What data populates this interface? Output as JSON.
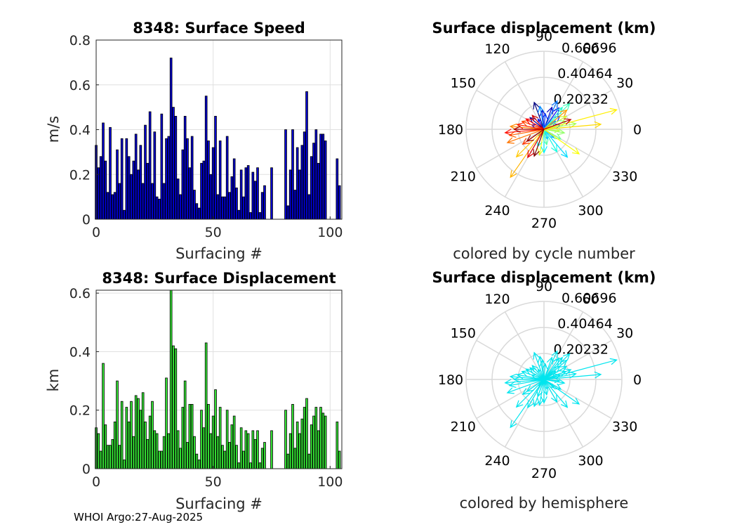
{
  "footer": "WHOI Argo:27-Aug-2025",
  "colors": {
    "speed_bar": "#0000cc",
    "disp_bar": "#33dd33",
    "hemisphere": "#00e5ee"
  },
  "chart_data": [
    {
      "id": "speed",
      "type": "bar",
      "title": "8348: Surface Speed",
      "xlabel": "Surfacing #",
      "ylabel": "m/s",
      "xlim": [
        0,
        105
      ],
      "ylim": [
        0,
        0.8
      ],
      "xticks": [
        "0",
        "50",
        "100"
      ],
      "xtick_values": [
        0,
        50,
        100
      ],
      "yticks": [
        "0",
        "0.2",
        "0.4",
        "0.6",
        "0.8"
      ],
      "ytick_values": [
        0,
        0.2,
        0.4,
        0.6,
        0.8
      ],
      "x": [
        0,
        1,
        2,
        3,
        4,
        5,
        6,
        7,
        8,
        9,
        10,
        11,
        12,
        13,
        14,
        15,
        16,
        17,
        18,
        19,
        20,
        21,
        22,
        23,
        24,
        25,
        26,
        27,
        28,
        29,
        30,
        31,
        32,
        33,
        34,
        35,
        36,
        37,
        38,
        39,
        40,
        41,
        42,
        43,
        44,
        45,
        46,
        47,
        48,
        49,
        50,
        51,
        52,
        53,
        54,
        55,
        56,
        57,
        58,
        59,
        60,
        61,
        62,
        63,
        64,
        65,
        66,
        67,
        68,
        69,
        70,
        71,
        72,
        75,
        81,
        82,
        83,
        84,
        85,
        86,
        87,
        88,
        89,
        90,
        91,
        92,
        93,
        94,
        95,
        96,
        97,
        98,
        103,
        104
      ],
      "values": [
        0.33,
        0.23,
        0.28,
        0.43,
        0.26,
        0.12,
        0.41,
        0.11,
        0.12,
        0.31,
        0.16,
        0.36,
        0.04,
        0.36,
        0.28,
        0.2,
        0.26,
        0.38,
        0.22,
        0.33,
        0.16,
        0.42,
        0.25,
        0.48,
        0.16,
        0.39,
        0.1,
        0.09,
        0.47,
        0.16,
        0.36,
        0.37,
        0.72,
        0.5,
        0.46,
        0.18,
        0.11,
        0.31,
        0.46,
        0.36,
        0.23,
        0.37,
        0.13,
        0.07,
        0.05,
        0.25,
        0.26,
        0.55,
        0.35,
        0.2,
        0.32,
        0.46,
        0.11,
        0.35,
        0.1,
        0.1,
        0.37,
        0.12,
        0.19,
        0.27,
        0.14,
        0.04,
        0.22,
        0.1,
        0.23,
        0.24,
        0.03,
        0.21,
        0.17,
        0.23,
        0.03,
        0.12,
        0.15,
        0.23,
        0.4,
        0.06,
        0.22,
        0.4,
        0.13,
        0.32,
        0.22,
        0.33,
        0.39,
        0.57,
        0.11,
        0.28,
        0.34,
        0.4,
        0.25,
        0.38,
        0.38,
        0.35,
        0.27,
        0.15
      ],
      "grid": true
    },
    {
      "id": "disp",
      "type": "bar",
      "title": "8348: Surface Displacement",
      "xlabel": "Surfacing #",
      "ylabel": "km",
      "xlim": [
        0,
        105
      ],
      "ylim": [
        0,
        0.61
      ],
      "xticks": [
        "0",
        "50",
        "100"
      ],
      "xtick_values": [
        0,
        50,
        100
      ],
      "yticks": [
        "0",
        "0.2",
        "0.4",
        "0.6"
      ],
      "ytick_values": [
        0,
        0.2,
        0.4,
        0.6
      ],
      "x": [
        0,
        1,
        2,
        3,
        4,
        5,
        6,
        7,
        8,
        9,
        10,
        11,
        12,
        13,
        14,
        15,
        16,
        17,
        18,
        19,
        20,
        21,
        22,
        23,
        24,
        25,
        26,
        27,
        28,
        29,
        30,
        31,
        32,
        33,
        34,
        35,
        36,
        37,
        38,
        39,
        40,
        41,
        42,
        43,
        44,
        45,
        46,
        47,
        48,
        49,
        50,
        51,
        52,
        53,
        54,
        55,
        56,
        57,
        58,
        59,
        60,
        61,
        62,
        63,
        64,
        65,
        66,
        67,
        68,
        69,
        70,
        71,
        72,
        75,
        81,
        82,
        83,
        84,
        85,
        86,
        87,
        88,
        89,
        90,
        91,
        92,
        93,
        94,
        95,
        96,
        97,
        98,
        103,
        104
      ],
      "values": [
        0.14,
        0.12,
        0.06,
        0.36,
        0.15,
        0.08,
        0.08,
        0.1,
        0.16,
        0.3,
        0.08,
        0.23,
        0.03,
        0.21,
        0.16,
        0.23,
        0.11,
        0.25,
        0.24,
        0.2,
        0.26,
        0.16,
        0.1,
        0.18,
        0.23,
        0.13,
        0.12,
        0.06,
        0.06,
        0.11,
        0.31,
        0.12,
        0.61,
        0.42,
        0.41,
        0.13,
        0.07,
        0.21,
        0.3,
        0.09,
        0.22,
        0.22,
        0.11,
        0.05,
        0.03,
        0.2,
        0.14,
        0.43,
        0.22,
        0.12,
        0.18,
        0.27,
        0.11,
        0.21,
        0.08,
        0.06,
        0.2,
        0.09,
        0.15,
        0.18,
        0.08,
        0.02,
        0.14,
        0.06,
        0.13,
        0.12,
        0.02,
        0.13,
        0.1,
        0.13,
        0.02,
        0.07,
        0.09,
        0.13,
        0.2,
        0.05,
        0.12,
        0.22,
        0.07,
        0.16,
        0.12,
        0.17,
        0.21,
        0.24,
        0.05,
        0.15,
        0.18,
        0.21,
        0.13,
        0.21,
        0.19,
        0.18,
        0.16,
        0.06
      ],
      "grid": true
    },
    {
      "id": "polar-cycle",
      "type": "polar",
      "title": "Surface displacement (km)",
      "subtitle": "colored by cycle number",
      "rmax": 0.6,
      "rticks": [
        "0.20232",
        "0.40464",
        "0.60696"
      ],
      "angle_labels": [
        "0",
        "30",
        "60",
        "90",
        "120",
        "150",
        "180",
        "210",
        "240",
        "270",
        "300",
        "330"
      ],
      "arrows": [
        {
          "deg": 110,
          "r": 0.22,
          "c": 0.0
        },
        {
          "deg": 140,
          "r": 0.14,
          "c": 0.03
        },
        {
          "deg": 70,
          "r": 0.18,
          "c": 0.06
        },
        {
          "deg": 95,
          "r": 0.15,
          "c": 0.08
        },
        {
          "deg": 160,
          "r": 0.1,
          "c": 0.1
        },
        {
          "deg": 55,
          "r": 0.2,
          "c": 0.12
        },
        {
          "deg": 120,
          "r": 0.09,
          "c": 0.14
        },
        {
          "deg": 40,
          "r": 0.16,
          "c": 0.16
        },
        {
          "deg": 85,
          "r": 0.12,
          "c": 0.18
        },
        {
          "deg": 15,
          "r": 0.13,
          "c": 0.2
        },
        {
          "deg": 230,
          "r": 0.06,
          "c": 0.22
        },
        {
          "deg": 65,
          "r": 0.24,
          "c": 0.24
        },
        {
          "deg": 100,
          "r": 0.18,
          "c": 0.26
        },
        {
          "deg": 35,
          "r": 0.11,
          "c": 0.28
        },
        {
          "deg": 320,
          "r": 0.1,
          "c": 0.3
        },
        {
          "deg": 290,
          "r": 0.08,
          "c": 0.32
        },
        {
          "deg": 310,
          "r": 0.28,
          "c": 0.34
        },
        {
          "deg": 270,
          "r": 0.18,
          "c": 0.36
        },
        {
          "deg": 250,
          "r": 0.14,
          "c": 0.38
        },
        {
          "deg": 300,
          "r": 0.2,
          "c": 0.4
        },
        {
          "deg": 50,
          "r": 0.22,
          "c": 0.42
        },
        {
          "deg": 45,
          "r": 0.28,
          "c": 0.44
        },
        {
          "deg": 280,
          "r": 0.12,
          "c": 0.46
        },
        {
          "deg": 330,
          "r": 0.15,
          "c": 0.48
        },
        {
          "deg": 20,
          "r": 0.18,
          "c": 0.5
        },
        {
          "deg": 350,
          "r": 0.16,
          "c": 0.52
        },
        {
          "deg": 10,
          "r": 0.25,
          "c": 0.54
        },
        {
          "deg": 355,
          "r": 0.12,
          "c": 0.56
        },
        {
          "deg": 30,
          "r": 0.2,
          "c": 0.58
        },
        {
          "deg": 260,
          "r": 0.2,
          "c": 0.6
        },
        {
          "deg": 325,
          "r": 0.33,
          "c": 0.62
        },
        {
          "deg": 15,
          "r": 0.58,
          "c": 0.64
        },
        {
          "deg": 5,
          "r": 0.44,
          "c": 0.66
        },
        {
          "deg": 225,
          "r": 0.3,
          "c": 0.68
        },
        {
          "deg": 235,
          "r": 0.45,
          "c": 0.7
        },
        {
          "deg": 40,
          "r": 0.23,
          "c": 0.72
        },
        {
          "deg": 175,
          "r": 0.26,
          "c": 0.74
        },
        {
          "deg": 200,
          "r": 0.3,
          "c": 0.76
        },
        {
          "deg": 190,
          "r": 0.27,
          "c": 0.78
        },
        {
          "deg": 160,
          "r": 0.18,
          "c": 0.8
        },
        {
          "deg": 215,
          "r": 0.2,
          "c": 0.82
        },
        {
          "deg": 170,
          "r": 0.21,
          "c": 0.84
        },
        {
          "deg": 185,
          "r": 0.3,
          "c": 0.86
        },
        {
          "deg": 150,
          "r": 0.16,
          "c": 0.88
        },
        {
          "deg": 240,
          "r": 0.25,
          "c": 0.9
        },
        {
          "deg": 130,
          "r": 0.14,
          "c": 0.92
        },
        {
          "deg": 20,
          "r": 0.22,
          "c": 0.94
        },
        {
          "deg": 180,
          "r": 0.23,
          "c": 0.96
        },
        {
          "deg": 215,
          "r": 0.16,
          "c": 0.98
        },
        {
          "deg": 250,
          "r": 0.22,
          "c": 1.0
        }
      ]
    },
    {
      "id": "polar-hemi",
      "type": "polar",
      "title": "Surface displacement (km)",
      "subtitle": "colored by hemisphere",
      "rmax": 0.6,
      "rticks": [
        "0.20232",
        "0.40464",
        "0.60696"
      ],
      "angle_labels": [
        "0",
        "30",
        "60",
        "90",
        "120",
        "150",
        "180",
        "210",
        "240",
        "270",
        "300",
        "330"
      ],
      "arrows": [
        {
          "deg": 110,
          "r": 0.22
        },
        {
          "deg": 140,
          "r": 0.14
        },
        {
          "deg": 70,
          "r": 0.18
        },
        {
          "deg": 95,
          "r": 0.15
        },
        {
          "deg": 160,
          "r": 0.1
        },
        {
          "deg": 55,
          "r": 0.2
        },
        {
          "deg": 120,
          "r": 0.09
        },
        {
          "deg": 40,
          "r": 0.16
        },
        {
          "deg": 85,
          "r": 0.12
        },
        {
          "deg": 15,
          "r": 0.13
        },
        {
          "deg": 230,
          "r": 0.06
        },
        {
          "deg": 65,
          "r": 0.24
        },
        {
          "deg": 100,
          "r": 0.18
        },
        {
          "deg": 35,
          "r": 0.11
        },
        {
          "deg": 320,
          "r": 0.1
        },
        {
          "deg": 290,
          "r": 0.08
        },
        {
          "deg": 310,
          "r": 0.28
        },
        {
          "deg": 270,
          "r": 0.18
        },
        {
          "deg": 250,
          "r": 0.14
        },
        {
          "deg": 300,
          "r": 0.2
        },
        {
          "deg": 50,
          "r": 0.22
        },
        {
          "deg": 45,
          "r": 0.28
        },
        {
          "deg": 280,
          "r": 0.12
        },
        {
          "deg": 330,
          "r": 0.15
        },
        {
          "deg": 20,
          "r": 0.18
        },
        {
          "deg": 350,
          "r": 0.16
        },
        {
          "deg": 10,
          "r": 0.25
        },
        {
          "deg": 355,
          "r": 0.12
        },
        {
          "deg": 30,
          "r": 0.2
        },
        {
          "deg": 260,
          "r": 0.2
        },
        {
          "deg": 325,
          "r": 0.33
        },
        {
          "deg": 15,
          "r": 0.58
        },
        {
          "deg": 5,
          "r": 0.44
        },
        {
          "deg": 225,
          "r": 0.3
        },
        {
          "deg": 235,
          "r": 0.45
        },
        {
          "deg": 40,
          "r": 0.23
        },
        {
          "deg": 175,
          "r": 0.26
        },
        {
          "deg": 200,
          "r": 0.3
        },
        {
          "deg": 190,
          "r": 0.27
        },
        {
          "deg": 160,
          "r": 0.18
        },
        {
          "deg": 215,
          "r": 0.2
        },
        {
          "deg": 170,
          "r": 0.21
        },
        {
          "deg": 185,
          "r": 0.3
        },
        {
          "deg": 150,
          "r": 0.16
        },
        {
          "deg": 240,
          "r": 0.25
        },
        {
          "deg": 130,
          "r": 0.14
        },
        {
          "deg": 20,
          "r": 0.22
        },
        {
          "deg": 180,
          "r": 0.23
        },
        {
          "deg": 215,
          "r": 0.16
        },
        {
          "deg": 250,
          "r": 0.22
        }
      ]
    }
  ]
}
